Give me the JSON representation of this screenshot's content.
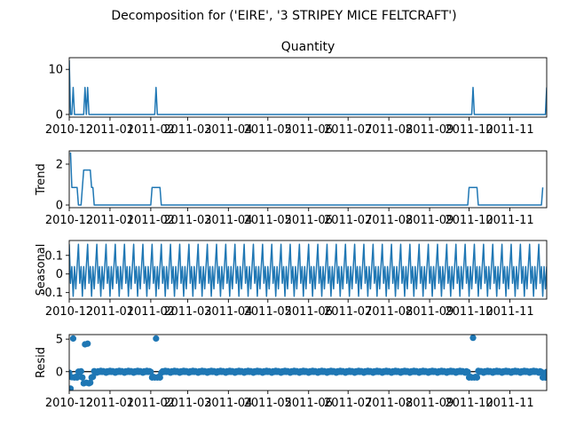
{
  "figure": {
    "suptitle": "Decomposition for ('EIRE', '3 STRIPEY MICE FELTCRAFT')"
  },
  "colors": {
    "series": "#1f77b4",
    "axes": "#000000",
    "background": "#ffffff"
  },
  "chart_data": [
    {
      "type": "line",
      "title": "Quantity",
      "ylabel": "",
      "xlim": [
        "2010-12-01",
        "2011-11-29"
      ],
      "ylim": [
        -0.6,
        12.6
      ],
      "yticks": [
        0,
        10
      ],
      "xticks": [
        "2010-12-01",
        "2011-01-01",
        "2011-02-01",
        "2011-03-01",
        "2011-04-01",
        "2011-05-01",
        "2011-06-01",
        "2011-07-01",
        "2011-08-01",
        "2011-09-01",
        "2011-10-01",
        "2011-11-01"
      ],
      "xticklabels": [
        "2010-12",
        "2011-01",
        "2011-02",
        "2011-03",
        "2011-04",
        "2011-05",
        "2011-06",
        "2011-07",
        "2011-08",
        "2011-09",
        "2011-10",
        "2011-11"
      ],
      "points": [
        [
          "2010-12-01",
          12
        ],
        [
          "2010-12-02",
          0
        ],
        [
          "2010-12-03",
          0
        ],
        [
          "2010-12-04",
          6
        ],
        [
          "2010-12-05",
          0
        ],
        [
          "2010-12-12",
          0
        ],
        [
          "2010-12-13",
          6
        ],
        [
          "2010-12-14",
          0
        ],
        [
          "2010-12-15",
          6
        ],
        [
          "2010-12-16",
          0
        ],
        [
          "2011-02-04",
          0
        ],
        [
          "2011-02-05",
          6
        ],
        [
          "2011-02-06",
          0
        ],
        [
          "2011-10-03",
          0
        ],
        [
          "2011-10-04",
          6
        ],
        [
          "2011-10-05",
          0
        ],
        [
          "2011-11-28",
          0
        ],
        [
          "2011-11-29",
          6
        ]
      ]
    },
    {
      "type": "line",
      "title": "",
      "ylabel": "Trend",
      "xlim": [
        "2010-12-01",
        "2011-11-29"
      ],
      "ylim": [
        -0.13,
        2.65
      ],
      "yticks": [
        0,
        2
      ],
      "xticks": [
        "2010-12-01",
        "2011-01-01",
        "2011-02-01",
        "2011-03-01",
        "2011-04-01",
        "2011-05-01",
        "2011-06-01",
        "2011-07-01",
        "2011-08-01",
        "2011-09-01",
        "2011-10-01",
        "2011-11-01"
      ],
      "xticklabels": [
        "2010-12",
        "2011-01",
        "2011-02",
        "2011-03",
        "2011-04",
        "2011-05",
        "2011-06",
        "2011-07",
        "2011-08",
        "2011-09",
        "2011-10",
        "2011-11"
      ],
      "points": [
        [
          "2010-12-02",
          2.57
        ],
        [
          "2010-12-03",
          0.86
        ],
        [
          "2010-12-07",
          0.86
        ],
        [
          "2010-12-08",
          0
        ],
        [
          "2010-12-10",
          0
        ],
        [
          "2010-12-11",
          0.86
        ],
        [
          "2010-12-12",
          1.71
        ],
        [
          "2010-12-17",
          1.71
        ],
        [
          "2010-12-18",
          0.86
        ],
        [
          "2010-12-19",
          0.86
        ],
        [
          "2010-12-20",
          0
        ],
        [
          "2011-02-01",
          0
        ],
        [
          "2011-02-02",
          0.86
        ],
        [
          "2011-02-08",
          0.86
        ],
        [
          "2011-02-09",
          0
        ],
        [
          "2011-09-30",
          0
        ],
        [
          "2011-10-01",
          0.86
        ],
        [
          "2011-10-07",
          0.86
        ],
        [
          "2011-10-08",
          0
        ],
        [
          "2011-11-25",
          0
        ],
        [
          "2011-11-26",
          0.86
        ]
      ]
    },
    {
      "type": "line",
      "title": "",
      "ylabel": "Seasonal",
      "xlim": [
        "2010-12-01",
        "2011-11-29"
      ],
      "ylim": [
        -0.135,
        0.18
      ],
      "yticks": [
        -0.1,
        0.0,
        0.1
      ],
      "xticks": [
        "2010-12-01",
        "2011-01-01",
        "2011-02-01",
        "2011-03-01",
        "2011-04-01",
        "2011-05-01",
        "2011-06-01",
        "2011-07-01",
        "2011-08-01",
        "2011-09-01",
        "2011-10-01",
        "2011-11-01"
      ],
      "xticklabels": [
        "2010-12",
        "2011-01",
        "2011-02",
        "2011-03",
        "2011-04",
        "2011-05",
        "2011-06",
        "2011-07",
        "2011-08",
        "2011-09",
        "2011-10",
        "2011-11"
      ],
      "start": "2010-12-01",
      "days": 364,
      "pattern": [
        0.16,
        -0.05,
        0.04,
        -0.12,
        0.04,
        -0.08,
        0.04
      ]
    },
    {
      "type": "scatter",
      "title": "",
      "ylabel": "Resid",
      "xlim": [
        "2010-12-01",
        "2011-11-29"
      ],
      "ylim": [
        -2.9,
        5.7
      ],
      "yticks": [
        0,
        5
      ],
      "baseline": 0,
      "xticks": [
        "2010-12-01",
        "2011-01-01",
        "2011-02-01",
        "2011-03-01",
        "2011-04-01",
        "2011-05-01",
        "2011-06-01",
        "2011-07-01",
        "2011-08-01",
        "2011-09-01",
        "2011-10-01",
        "2011-11-01"
      ],
      "xticklabels": [
        "2010-12",
        "2011-01",
        "2011-02",
        "2011-03",
        "2011-04",
        "2011-05",
        "2011-06",
        "2011-07",
        "2011-08",
        "2011-09",
        "2011-10",
        "2011-11"
      ],
      "start": "2010-12-01",
      "days": 364,
      "pattern": [
        -0.16,
        0.05,
        -0.04,
        0.12,
        -0.04,
        0.08,
        -0.04
      ],
      "overrides": [
        [
          "2010-12-02",
          -2.6
        ],
        [
          "2010-12-03",
          -0.86
        ],
        [
          "2010-12-04",
          5.1
        ],
        [
          "2010-12-05",
          -0.9
        ],
        [
          "2010-12-06",
          -0.8
        ],
        [
          "2010-12-07",
          -0.9
        ],
        [
          "2010-12-08",
          0.0
        ],
        [
          "2010-12-09",
          -0.1
        ],
        [
          "2010-12-10",
          0.05
        ],
        [
          "2010-12-11",
          -0.9
        ],
        [
          "2010-12-12",
          -1.8
        ],
        [
          "2010-12-13",
          4.2
        ],
        [
          "2010-12-14",
          -1.7
        ],
        [
          "2010-12-15",
          4.3
        ],
        [
          "2010-12-16",
          -1.8
        ],
        [
          "2010-12-17",
          -1.7
        ],
        [
          "2010-12-18",
          -0.9
        ],
        [
          "2010-12-19",
          -0.8
        ],
        [
          "2011-02-02",
          -0.9
        ],
        [
          "2011-02-03",
          -0.8
        ],
        [
          "2011-02-04",
          -0.9
        ],
        [
          "2011-02-05",
          5.1
        ],
        [
          "2011-02-06",
          -0.9
        ],
        [
          "2011-02-07",
          -0.8
        ],
        [
          "2011-02-08",
          -0.9
        ],
        [
          "2011-10-01",
          -0.9
        ],
        [
          "2011-10-02",
          -0.8
        ],
        [
          "2011-10-03",
          -0.9
        ],
        [
          "2011-10-04",
          5.2
        ],
        [
          "2011-10-05",
          -0.9
        ],
        [
          "2011-10-06",
          -0.8
        ],
        [
          "2011-10-07",
          -0.9
        ],
        [
          "2011-11-26",
          -0.9
        ],
        [
          "2011-11-27",
          -0.8
        ],
        [
          "2011-11-28",
          -0.9
        ]
      ]
    }
  ]
}
